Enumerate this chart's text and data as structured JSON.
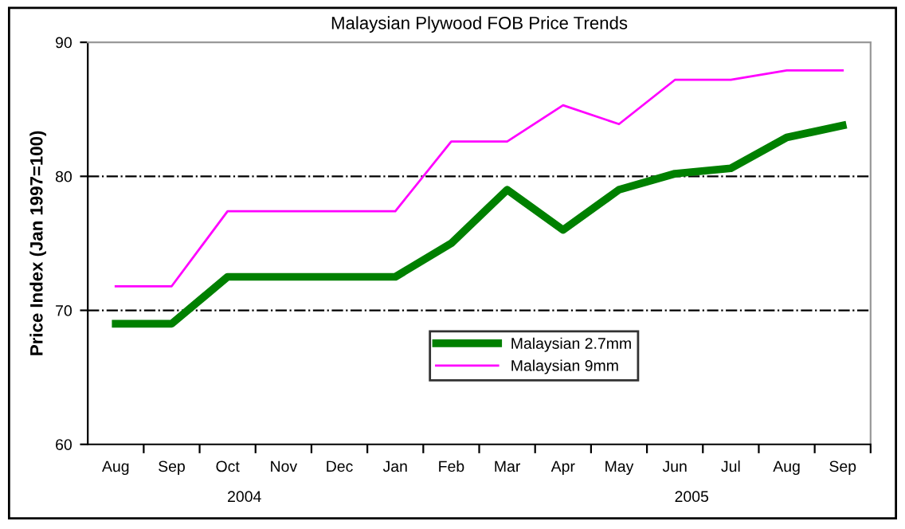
{
  "chart_data": {
    "type": "line",
    "title": "Malaysian Plywood FOB Price Trends",
    "ylabel": "Price Index (Jan 1997=100)",
    "categories": [
      "Aug",
      "Sep",
      "Oct",
      "Nov",
      "Dec",
      "Jan",
      "Feb",
      "Mar",
      "Apr",
      "May",
      "Jun",
      "Jul",
      "Aug",
      "Sep"
    ],
    "series": [
      {
        "name": "Malaysian 2.7mm",
        "color": "#008000",
        "values": [
          69,
          69,
          72.5,
          72.5,
          72.5,
          72.5,
          75,
          79,
          76,
          79,
          80.2,
          80.6,
          82.9,
          83.8
        ]
      },
      {
        "name": "Malaysian 9mm",
        "color": "#ff00ff",
        "values": [
          71.8,
          71.8,
          77.4,
          77.4,
          77.4,
          77.4,
          82.6,
          82.6,
          85.3,
          83.9,
          87.2,
          87.2,
          87.9,
          87.9
        ]
      }
    ],
    "annotations": [
      "2004",
      "2005"
    ],
    "ylim": [
      60,
      90
    ],
    "yticks": [
      60,
      70,
      80,
      90
    ],
    "grid": "y",
    "legend": "bottom",
    "marker": "none",
    "line_style": "solid"
  }
}
